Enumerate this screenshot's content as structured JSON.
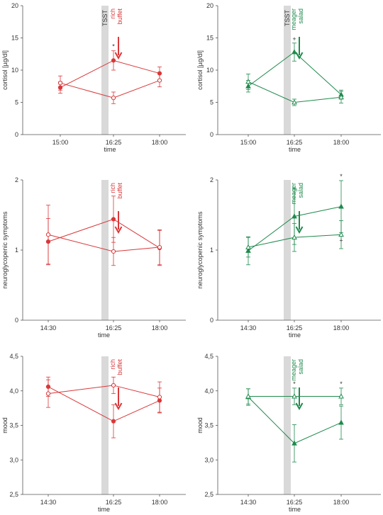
{
  "colors": {
    "rich": "#d9383a",
    "meager": "#1e8a4c",
    "axis": "#555555",
    "band": "#d9d9d9"
  },
  "chart_data": [
    {
      "type": "line",
      "panel": "cortisol-rich",
      "group": "rich",
      "ylabel": "cortisol [µg/dl]",
      "xlabel": "time",
      "x_ticks": [
        "15:00",
        "16:25",
        "18:00"
      ],
      "ylim": [
        0,
        20
      ],
      "y_ticks": [
        "0",
        "5",
        "10",
        "15",
        "20"
      ],
      "y_tick_values": [
        0,
        5,
        10,
        15,
        20
      ],
      "band_label": "TSST",
      "meal_label": [
        "rich",
        "buffet"
      ],
      "star_marks": [
        {
          "x": 1,
          "text": "*"
        }
      ],
      "series": [
        {
          "values": [
            7.3,
            11.5,
            9.5
          ],
          "err": [
            0.9,
            1.5,
            1.0
          ],
          "marker": "filled"
        },
        {
          "values": [
            8.0,
            5.7,
            8.4
          ],
          "err": [
            1.1,
            0.9,
            1.0
          ],
          "marker": "open"
        }
      ]
    },
    {
      "type": "line",
      "panel": "cortisol-meager",
      "group": "meager",
      "ylabel": "cortisol [µg/dl]",
      "xlabel": "time",
      "x_ticks": [
        "15:00",
        "16:25",
        "18:00"
      ],
      "ylim": [
        0,
        20
      ],
      "y_ticks": [
        "0",
        "5",
        "10",
        "15",
        "20"
      ],
      "y_tick_values": [
        0,
        5,
        10,
        15,
        20
      ],
      "band_label": "TSST",
      "meal_label": [
        "meager",
        "salad"
      ],
      "star_marks": [
        {
          "x": 1,
          "text": "+"
        }
      ],
      "series": [
        {
          "values": [
            7.5,
            12.8,
            6.2
          ],
          "err": [
            0.9,
            1.4,
            0.7
          ],
          "marker": "filled"
        },
        {
          "values": [
            8.2,
            5.0,
            5.8
          ],
          "err": [
            1.2,
            0.5,
            0.9
          ],
          "marker": "open"
        }
      ]
    },
    {
      "type": "line",
      "panel": "neuro-rich",
      "group": "rich",
      "ylabel": "neuroglycopenic symptoms",
      "xlabel": "time",
      "x_ticks": [
        "14:30",
        "16:25",
        "18:00"
      ],
      "ylim": [
        0,
        2
      ],
      "y_ticks": [
        "0",
        "1",
        "2"
      ],
      "y_tick_values": [
        0,
        1,
        2
      ],
      "band_label": "",
      "meal_label": [
        "rich",
        "buffet"
      ],
      "star_marks": [],
      "series": [
        {
          "values": [
            1.12,
            1.44,
            1.03
          ],
          "err": [
            0.33,
            0.33,
            0.25
          ],
          "marker": "filled"
        },
        {
          "values": [
            1.22,
            0.98,
            1.04
          ],
          "err": [
            0.42,
            0.2,
            0.25
          ],
          "marker": "open"
        }
      ]
    },
    {
      "type": "line",
      "panel": "neuro-meager",
      "group": "meager",
      "ylabel": "neuroglycopenic symptoms",
      "xlabel": "time",
      "x_ticks": [
        "14:30",
        "16:25",
        "18:00"
      ],
      "ylim": [
        0,
        2
      ],
      "y_ticks": [
        "0",
        "1",
        "2"
      ],
      "y_tick_values": [
        0,
        1,
        2
      ],
      "band_label": "",
      "meal_label": [
        "meager",
        "salad"
      ],
      "star_marks": [
        {
          "x": 2,
          "text": "*"
        },
        {
          "x": 2,
          "text": "+",
          "below": true
        }
      ],
      "series": [
        {
          "values": [
            0.99,
            1.48,
            1.62
          ],
          "err": [
            0.2,
            0.4,
            0.37
          ],
          "marker": "filled"
        },
        {
          "values": [
            1.04,
            1.18,
            1.22
          ],
          "err": [
            0.14,
            0.2,
            0.2
          ],
          "marker": "open"
        }
      ]
    },
    {
      "type": "line",
      "panel": "mood-rich",
      "group": "rich",
      "ylabel": "mood",
      "xlabel": "time",
      "x_ticks": [
        "14:30",
        "16:25",
        "18:00"
      ],
      "ylim": [
        2.5,
        4.5
      ],
      "y_ticks": [
        "2,5",
        "3,0",
        "3,5",
        "4,0",
        "4,5"
      ],
      "y_tick_values": [
        2.5,
        3.0,
        3.5,
        4.0,
        4.5
      ],
      "band_label": "",
      "meal_label": [
        "rich",
        "buffet"
      ],
      "star_marks": [],
      "series": [
        {
          "values": [
            4.06,
            3.56,
            3.86
          ],
          "err": [
            0.14,
            0.24,
            0.18
          ],
          "marker": "filled"
        },
        {
          "values": [
            3.96,
            4.08,
            3.91
          ],
          "err": [
            0.2,
            0.12,
            0.22
          ],
          "marker": "open"
        }
      ]
    },
    {
      "type": "line",
      "panel": "mood-meager",
      "group": "meager",
      "ylabel": "mood",
      "xlabel": "time",
      "x_ticks": [
        "14:30",
        "16:25",
        "18:00"
      ],
      "ylim": [
        2.5,
        4.5
      ],
      "y_ticks": [
        "2,5",
        "3,0",
        "3,5",
        "4,0",
        "4,5"
      ],
      "y_tick_values": [
        2.5,
        3.0,
        3.5,
        4.0,
        4.5
      ],
      "band_label": "",
      "meal_label": [
        "meager",
        "salad"
      ],
      "star_marks": [
        {
          "x": 1,
          "text": "*"
        },
        {
          "x": 2,
          "text": "*"
        }
      ],
      "series": [
        {
          "values": [
            3.91,
            3.24,
            3.54
          ],
          "err": [
            0.12,
            0.27,
            0.24
          ],
          "marker": "filled"
        },
        {
          "values": [
            3.92,
            3.92,
            3.92
          ],
          "err": [
            0.11,
            0.12,
            0.12
          ],
          "marker": "open"
        }
      ]
    }
  ]
}
